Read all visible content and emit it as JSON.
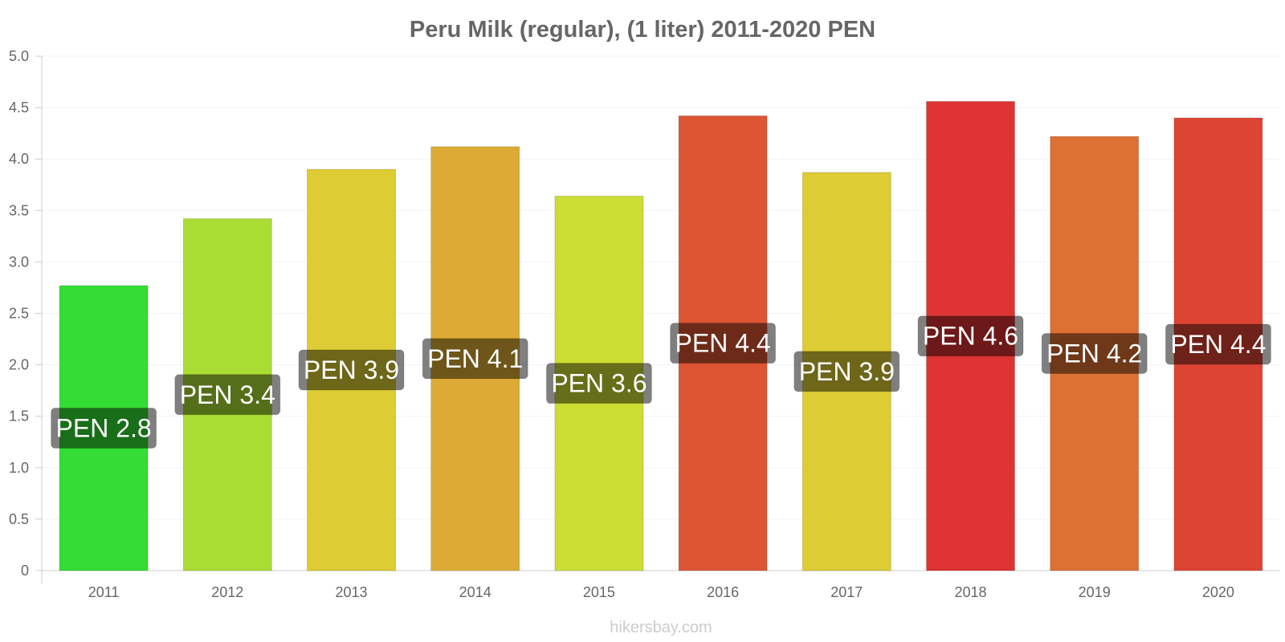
{
  "chart_data": {
    "type": "bar",
    "title": "Peru Milk (regular), (1 liter) 2011-2020 PEN",
    "xlabel": "",
    "ylabel": "",
    "categories": [
      "2011",
      "2012",
      "2013",
      "2014",
      "2015",
      "2016",
      "2017",
      "2018",
      "2019",
      "2020"
    ],
    "values": [
      2.77,
      3.42,
      3.9,
      4.12,
      3.64,
      4.42,
      3.87,
      4.56,
      4.22,
      4.4
    ],
    "data_labels": [
      "PEN 2.8",
      "PEN 3.4",
      "PEN 3.9",
      "PEN 4.1",
      "PEN 3.6",
      "PEN 4.4",
      "PEN 3.9",
      "PEN 4.6",
      "PEN 4.2",
      "PEN 4.4"
    ],
    "bar_colors": [
      "#33dd33",
      "#aadd33",
      "#ddcc33",
      "#ddaa33",
      "#ccdd33",
      "#dd5533",
      "#ddcc33",
      "#dd3333",
      "#dd7033",
      "#dd4433"
    ],
    "ylim": [
      0,
      5
    ],
    "yticks": [
      "0",
      "0.5",
      "1.0",
      "1.5",
      "2.0",
      "2.5",
      "3.0",
      "3.5",
      "4.0",
      "4.5",
      "5.0"
    ],
    "grid": true,
    "legend": "none"
  },
  "watermark": "hikersbay.com"
}
